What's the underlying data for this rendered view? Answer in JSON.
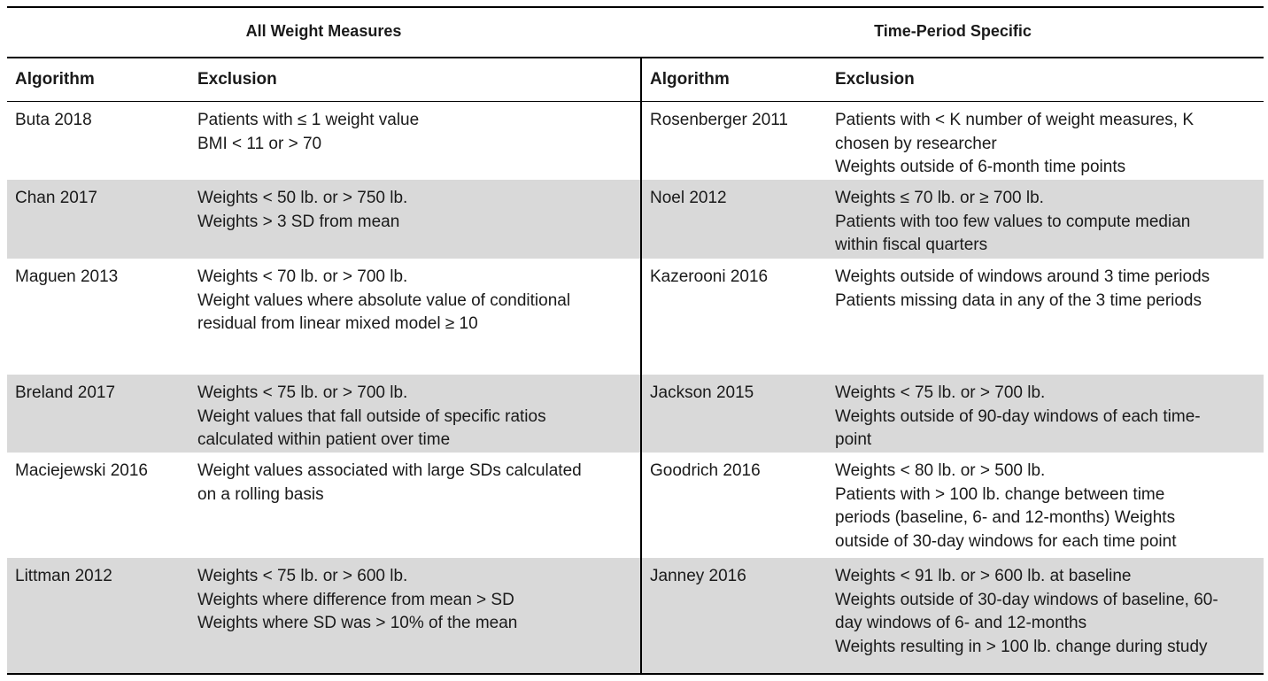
{
  "groups": {
    "left": "All Weight Measures",
    "right": "Time-Period Specific"
  },
  "columns": {
    "algorithm": "Algorithm",
    "exclusion": "Exclusion"
  },
  "rows": [
    {
      "left_algorithm": "Buta 2018",
      "left_exclusion": [
        "Patients with ≤ 1 weight value",
        "BMI < 11 or > 70"
      ],
      "right_algorithm": "Rosenberger 2011",
      "right_exclusion": [
        "Patients with < K number of weight measures, K",
        "chosen by researcher",
        "Weights outside of 6-month time points"
      ]
    },
    {
      "left_algorithm": "Chan 2017",
      "left_exclusion": [
        "Weights < 50 lb. or > 750 lb.",
        "Weights > 3 SD from mean"
      ],
      "right_algorithm": "Noel 2012",
      "right_exclusion": [
        "Weights ≤ 70 lb. or ≥ 700 lb.",
        "Patients with too few values to compute median",
        "within fiscal quarters"
      ]
    },
    {
      "left_algorithm": "Maguen 2013",
      "left_exclusion": [
        "Weights < 70 lb. or > 700 lb.",
        "Weight values where absolute value of conditional",
        "residual from linear mixed model ≥ 10"
      ],
      "right_algorithm": "Kazerooni 2016",
      "right_exclusion": [
        "Weights outside of windows around 3 time periods",
        "Patients missing data in any of the 3 time periods"
      ]
    },
    {
      "left_algorithm": "Breland 2017",
      "left_exclusion": [
        "Weights < 75 lb. or > 700 lb.",
        "Weight values that fall outside of specific ratios",
        "calculated within patient over time"
      ],
      "right_algorithm": "Jackson 2015",
      "right_exclusion": [
        "Weights < 75 lb. or > 700 lb.",
        "Weights outside of 90-day windows of each time-",
        "point"
      ]
    },
    {
      "left_algorithm": "Maciejewski 2016",
      "left_exclusion": [
        "Weight values associated with large SDs calculated",
        "on a rolling basis"
      ],
      "right_algorithm": "Goodrich 2016",
      "right_exclusion": [
        "Weights < 80 lb. or > 500 lb.",
        "Patients with > 100 lb. change between time",
        "periods (baseline, 6- and 12-months) Weights",
        "outside of 30-day windows for each time point"
      ]
    },
    {
      "left_algorithm": "Littman 2012",
      "left_exclusion": [
        "Weights < 75 lb. or > 600 lb.",
        "Weights where difference from mean > SD",
        "Weights where SD was > 10% of the mean"
      ],
      "right_algorithm": "Janney 2016",
      "right_exclusion": [
        "Weights < 91 lb. or > 600 lb. at baseline",
        "Weights outside of 30-day windows of baseline, 60-",
        "day windows of 6- and 12-months",
        "Weights resulting in > 100 lb. change during study"
      ]
    }
  ],
  "colors": {
    "shaded_row": "#d9d9d9",
    "rule": "#000000"
  }
}
